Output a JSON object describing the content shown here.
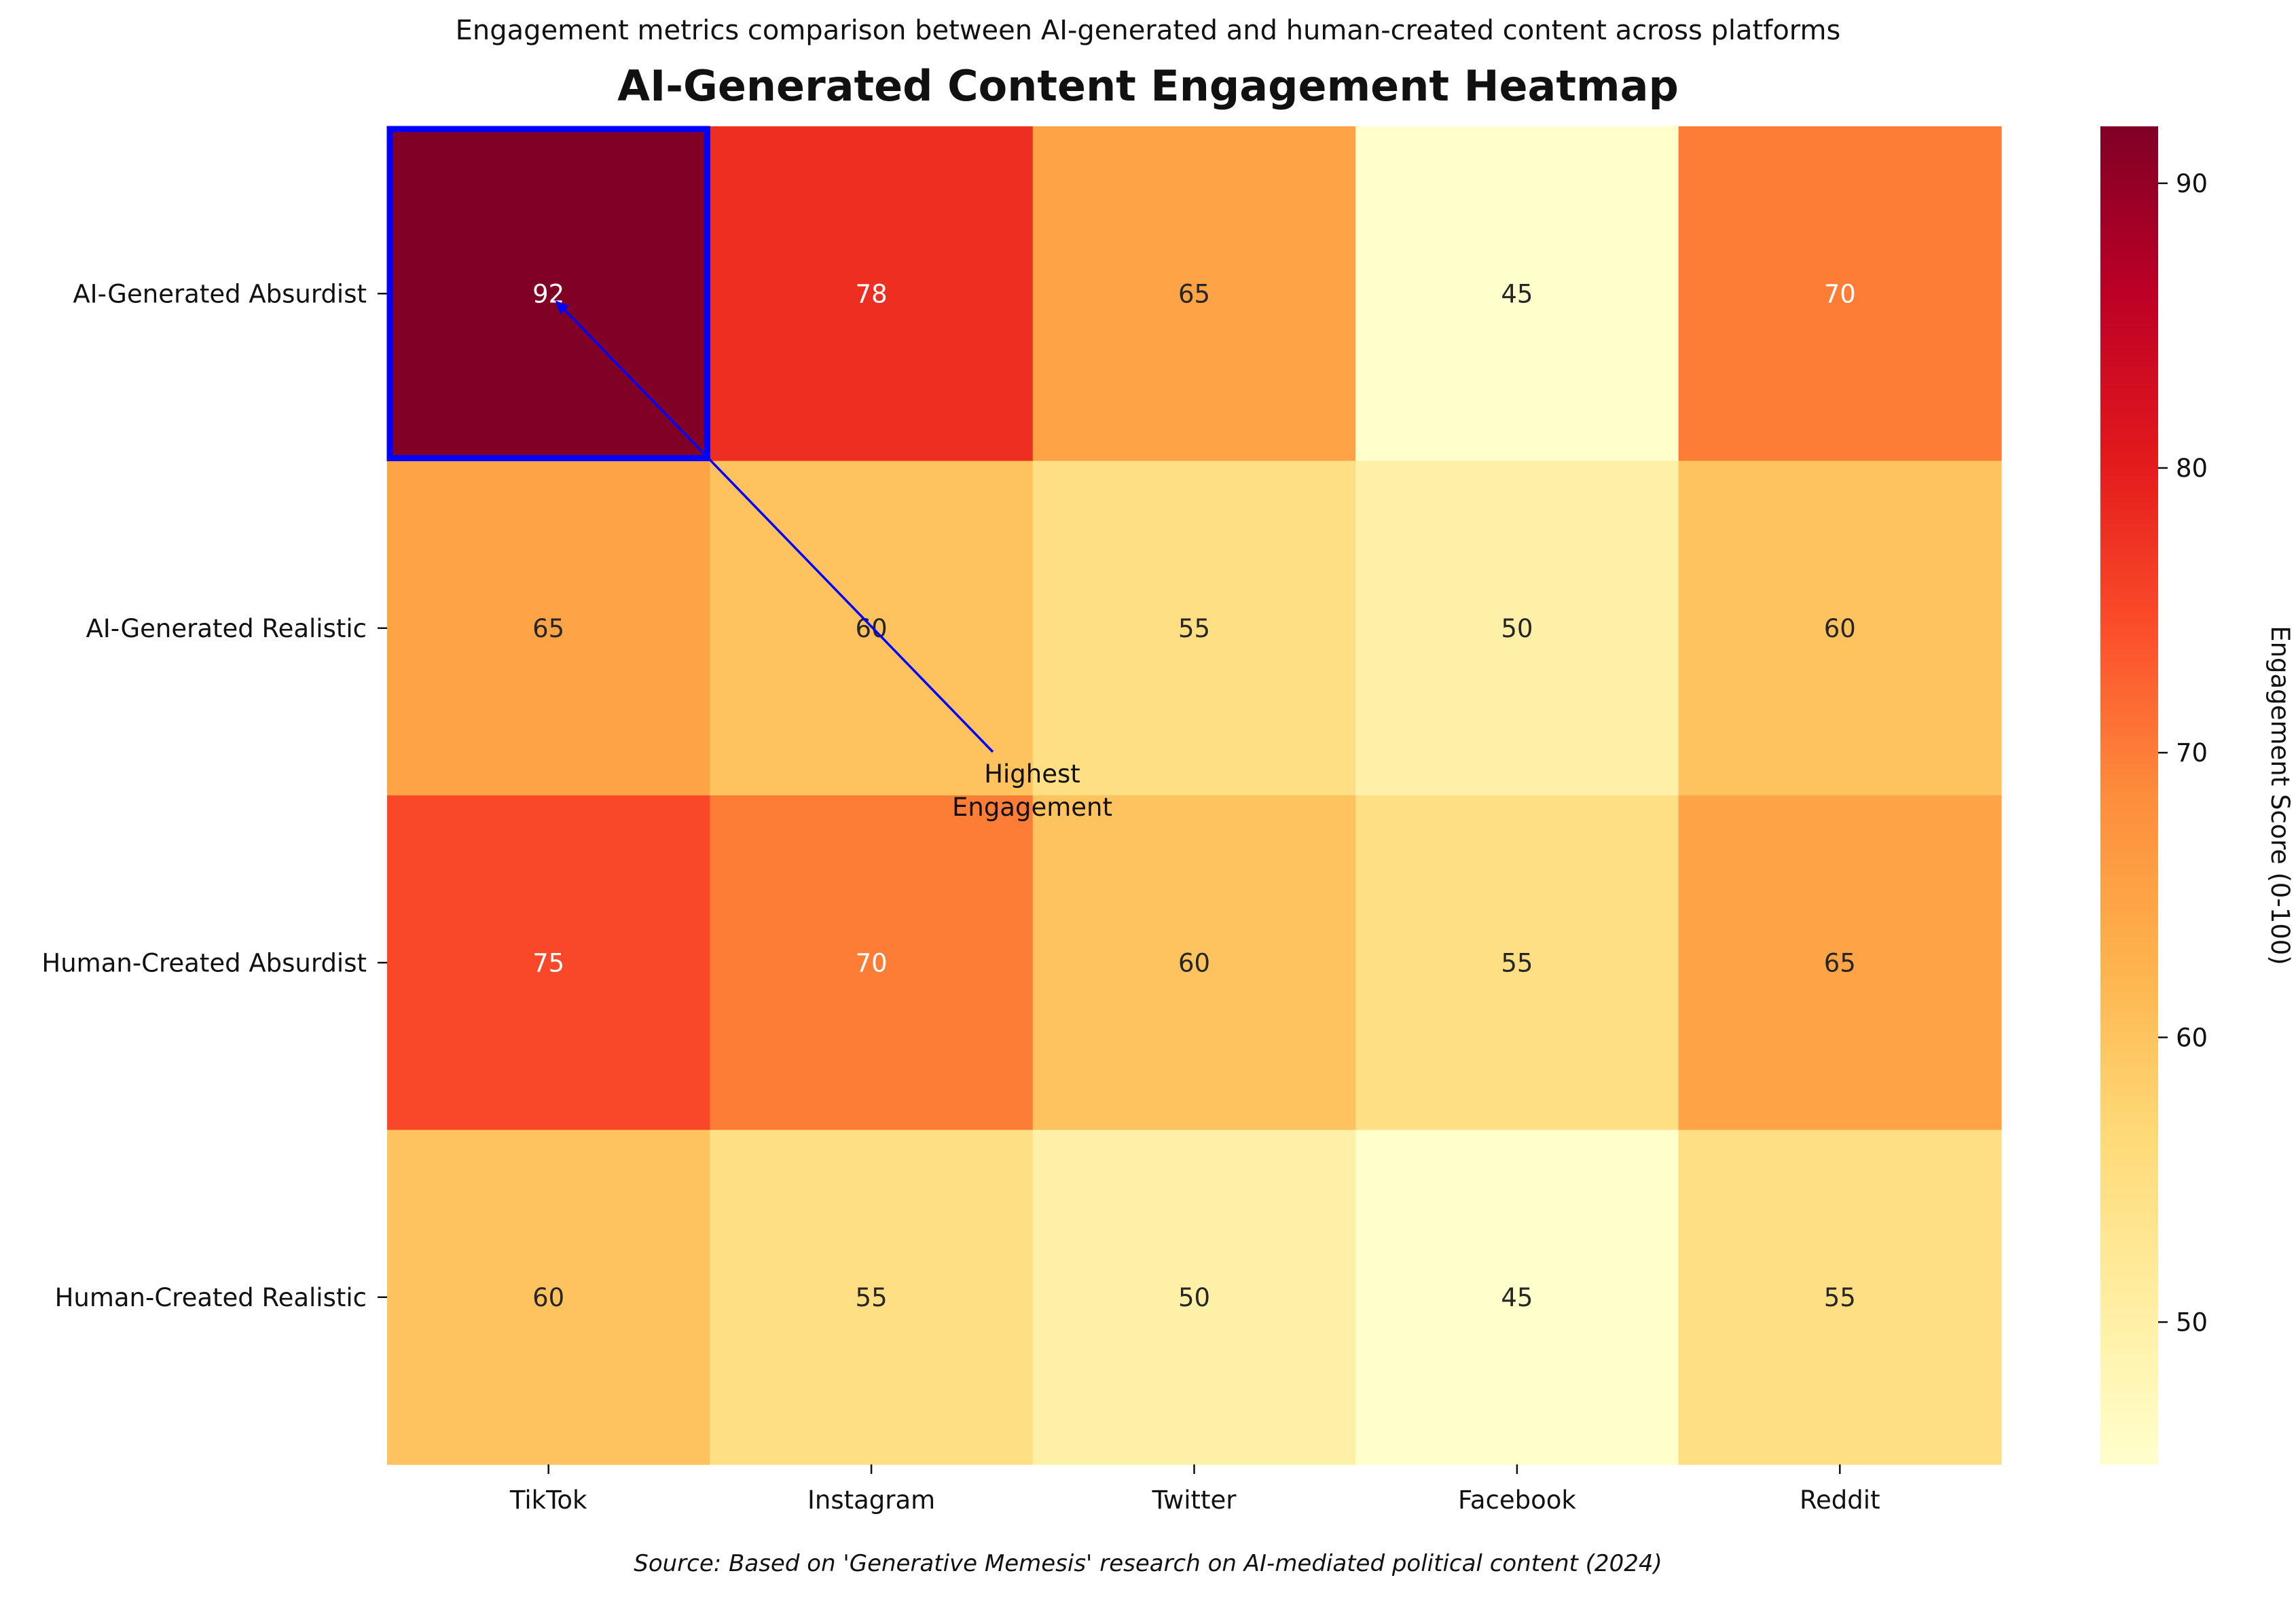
{
  "chart_data": {
    "type": "heatmap",
    "subtitle": "Engagement metrics comparison between AI-generated and human-created content across platforms",
    "title": "AI-Generated Content Engagement Heatmap",
    "source": "Source: Based on 'Generative Memesis' research on AI-mediated political content (2024)",
    "columns": [
      "TikTok",
      "Instagram",
      "Twitter",
      "Facebook",
      "Reddit"
    ],
    "rows": [
      "AI-Generated Absurdist",
      "AI-Generated Realistic",
      "Human-Created Absurdist",
      "Human-Created Realistic"
    ],
    "values": [
      [
        92,
        78,
        65,
        45,
        70
      ],
      [
        65,
        60,
        55,
        50,
        60
      ],
      [
        75,
        70,
        60,
        55,
        65
      ],
      [
        60,
        55,
        50,
        45,
        55
      ]
    ],
    "colormap": "YlOrRd",
    "vmin": 45,
    "vmax": 92,
    "colorbar": {
      "label": "Engagement Score (0-100)",
      "ticks": [
        50,
        60,
        70,
        80,
        90
      ]
    },
    "annotation": {
      "text_line1": "Highest",
      "text_line2": "Engagement",
      "target_row": 0,
      "target_col": 0,
      "color": "#0000ff"
    },
    "highlight": {
      "row": 0,
      "col": 0,
      "color": "#0000ff"
    }
  }
}
